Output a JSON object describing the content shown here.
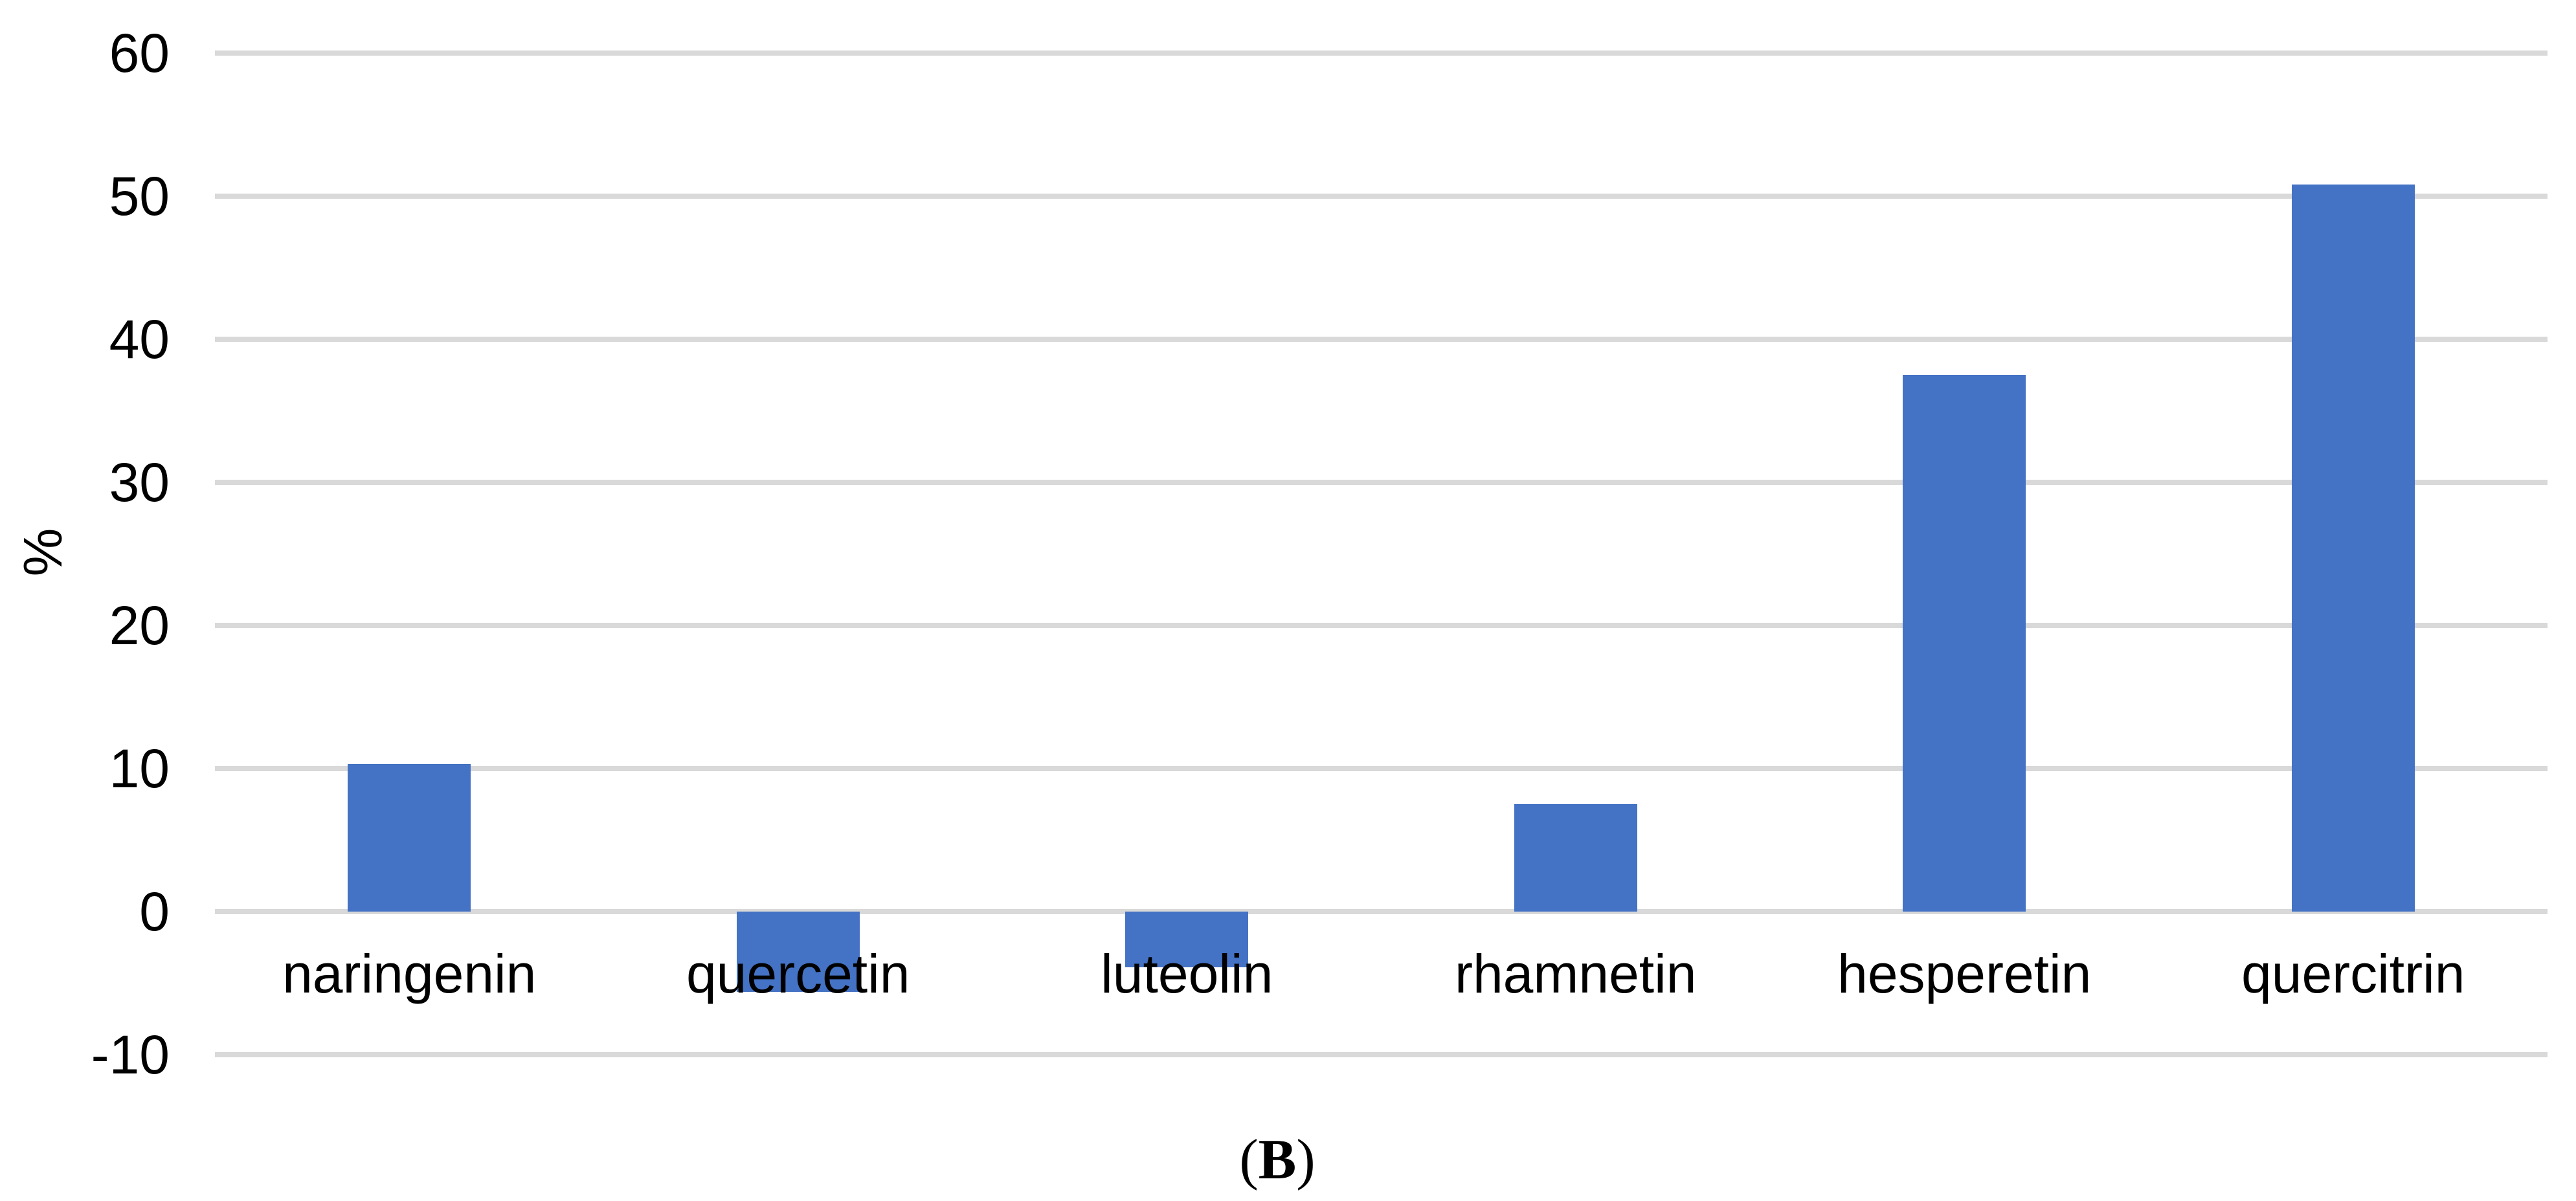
{
  "figure": {
    "caption_open": "(",
    "caption_letter": "B",
    "caption_close": ")"
  },
  "chart_data": {
    "type": "bar",
    "title": "",
    "xlabel": "",
    "ylabel": "%",
    "categories": [
      "naringenin",
      "quercetin",
      "luteolin",
      "rhamnetin",
      "hesperetin",
      "quercitrin"
    ],
    "values": [
      10.3,
      -5.6,
      -3.9,
      7.5,
      37.5,
      50.8
    ],
    "ylim": [
      -10,
      60
    ],
    "yticks": [
      60,
      50,
      40,
      30,
      20,
      10,
      0,
      -10
    ],
    "grid": true,
    "legend_position": "none",
    "bar_color": "#4472C4",
    "gridline_color": "#D9D9D9",
    "background_color": "#FFFFFF",
    "text_color": "#000000"
  }
}
